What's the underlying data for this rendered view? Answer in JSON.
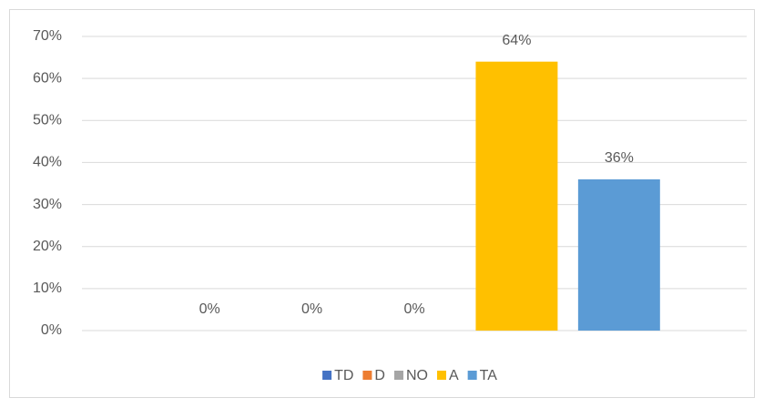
{
  "chart_data": {
    "type": "bar",
    "categories": [
      null
    ],
    "series": [
      {
        "name": "TD",
        "color": "#4472c4",
        "values": [
          0
        ],
        "value_labels": [
          "0%"
        ]
      },
      {
        "name": "D",
        "color": "#ed7d31",
        "values": [
          0
        ],
        "value_labels": [
          "0%"
        ]
      },
      {
        "name": "NO",
        "color": "#a5a5a5",
        "values": [
          0
        ],
        "value_labels": [
          "0%"
        ]
      },
      {
        "name": "A",
        "color": "#ffc000",
        "values": [
          64
        ],
        "value_labels": [
          "64%"
        ]
      },
      {
        "name": "TA",
        "color": "#5b9bd5",
        "values": [
          36
        ],
        "value_labels": [
          "36%"
        ]
      }
    ],
    "ylim": [
      0,
      70
    ],
    "yticks": [
      {
        "value": 0,
        "label": "0%"
      },
      {
        "value": 10,
        "label": "10%"
      },
      {
        "value": 20,
        "label": "20%"
      },
      {
        "value": 30,
        "label": "30%"
      },
      {
        "value": 40,
        "label": "40%"
      },
      {
        "value": 50,
        "label": "50%"
      },
      {
        "value": 60,
        "label": "60%"
      },
      {
        "value": 70,
        "label": "70%"
      }
    ],
    "grid": true,
    "legend": "bottom"
  }
}
